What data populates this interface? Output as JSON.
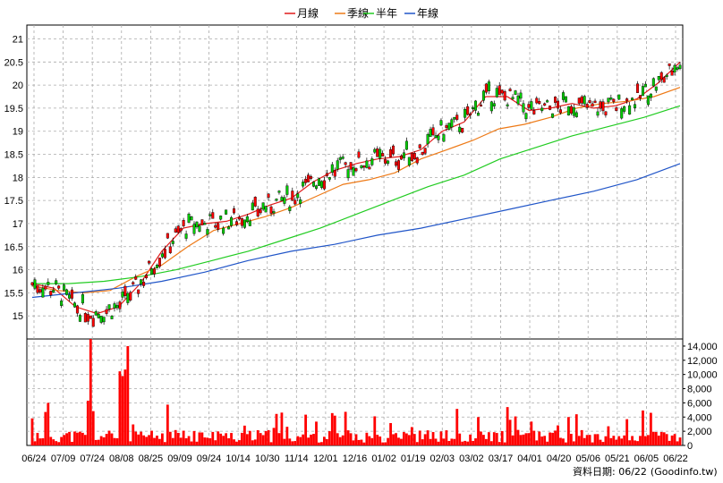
{
  "chart_data": {
    "type": "candlestick",
    "legend": [
      {
        "label": "月線",
        "color": "#e11b1b"
      },
      {
        "label": "季線",
        "color": "#ee7a17"
      },
      {
        "label": "半年",
        "color": "#22cc22"
      },
      {
        "label": "年線",
        "color": "#2055c8"
      }
    ],
    "legend_position": "top-center",
    "grid": true,
    "price_axis": {
      "ticks": [
        15,
        15.5,
        16,
        16.5,
        17,
        17.5,
        18,
        18.5,
        19,
        19.5,
        20,
        20.5,
        21
      ],
      "tick_labels": [
        "15",
        "15.5",
        "16",
        "16.5",
        "17",
        "17.5",
        "18",
        "18.5",
        "19",
        "19.5",
        "20",
        "20.5",
        "21"
      ],
      "range": [
        14.5,
        21.3
      ],
      "position": "left"
    },
    "volume_axis": {
      "ticks": [
        0,
        2000,
        4000,
        6000,
        8000,
        10000,
        12000,
        14000
      ],
      "tick_labels": [
        "0",
        "2,000",
        "4,000",
        "6,000",
        "8,000",
        "10,000",
        "12,000",
        "14,000"
      ],
      "range": [
        0,
        15000
      ],
      "position": "right"
    },
    "x_labels": [
      "06/24",
      "07/09",
      "07/24",
      "08/08",
      "08/25",
      "09/09",
      "09/24",
      "10/14",
      "10/30",
      "11/14",
      "12/01",
      "12/16",
      "01/02",
      "01/19",
      "02/03",
      "03/02",
      "03/17",
      "04/01",
      "04/20",
      "05/06",
      "05/21",
      "06/05",
      "06/22"
    ],
    "moving_averages": {
      "月線": [
        15.7,
        15.6,
        15.2,
        15.05,
        15.2,
        15.7,
        16.4,
        16.9,
        17.0,
        17.05,
        17.2,
        17.4,
        17.55,
        17.9,
        18.15,
        18.3,
        18.4,
        18.45,
        18.6,
        19.0,
        19.2,
        19.75,
        19.75,
        19.45,
        19.5,
        19.6,
        19.5,
        19.55,
        19.7,
        20.05,
        20.5
      ],
      "季線": [
        15.65,
        15.55,
        15.5,
        15.55,
        15.85,
        16.1,
        16.5,
        16.85,
        17.0,
        17.15,
        17.35,
        17.6,
        17.85,
        17.95,
        18.1,
        18.4,
        18.6,
        18.8,
        19.05,
        19.15,
        19.3,
        19.5,
        19.6,
        19.65,
        19.75,
        19.95
      ],
      "半年": [
        15.7,
        15.7,
        15.75,
        15.85,
        16.0,
        16.2,
        16.4,
        16.65,
        16.9,
        17.2,
        17.5,
        17.8,
        18.05,
        18.4,
        18.65,
        18.9,
        19.1,
        19.3,
        19.55
      ],
      "年線": [
        15.4,
        15.5,
        15.6,
        15.75,
        15.95,
        16.2,
        16.4,
        16.55,
        16.75,
        16.9,
        17.1,
        17.3,
        17.5,
        17.7,
        17.95,
        18.3
      ]
    },
    "volume_note": "daily volume bars; notable spikes near 07/24 (~15,000) and 08/08 (~14,000)",
    "source_prefix": "資料日期: ",
    "source_date": "06/22",
    "source_site": "(Goodinfo.tw)"
  }
}
